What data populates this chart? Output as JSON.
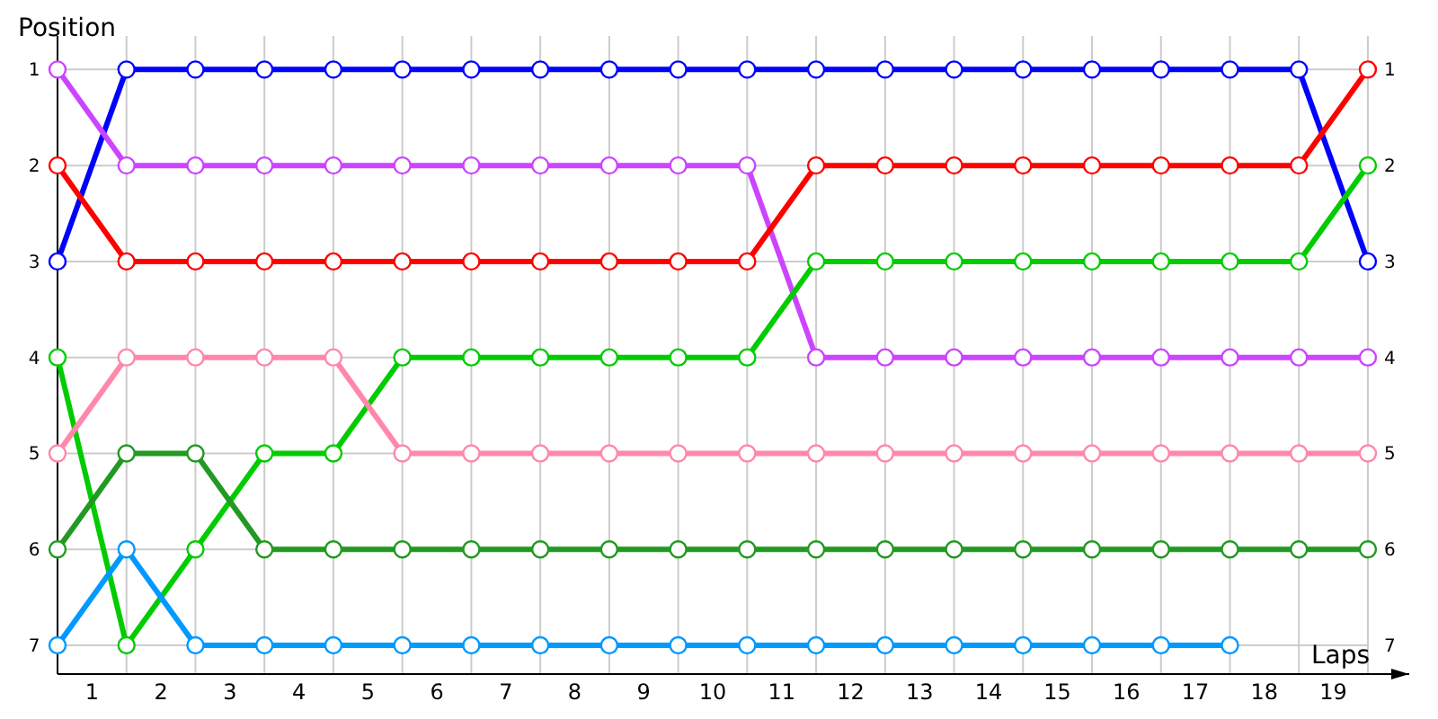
{
  "chart_data": {
    "type": "line",
    "xlabel": "Laps",
    "ylabel": "Position",
    "x": [
      0,
      1,
      2,
      3,
      4,
      5,
      6,
      7,
      8,
      9,
      10,
      11,
      12,
      13,
      14,
      15,
      16,
      17,
      18,
      19
    ],
    "xlim": [
      0,
      19.6
    ],
    "xticks": [
      {
        "value": 0.5,
        "label": "1"
      },
      {
        "value": 1.5,
        "label": "2"
      },
      {
        "value": 2.5,
        "label": "3"
      },
      {
        "value": 3.5,
        "label": "4"
      },
      {
        "value": 4.5,
        "label": "5"
      },
      {
        "value": 5.5,
        "label": "6"
      },
      {
        "value": 6.5,
        "label": "7"
      },
      {
        "value": 7.5,
        "label": "8"
      },
      {
        "value": 8.5,
        "label": "9"
      },
      {
        "value": 9.5,
        "label": "10"
      },
      {
        "value": 10.5,
        "label": "11"
      },
      {
        "value": 11.5,
        "label": "12"
      },
      {
        "value": 12.5,
        "label": "13"
      },
      {
        "value": 13.5,
        "label": "14"
      },
      {
        "value": 14.5,
        "label": "15"
      },
      {
        "value": 15.5,
        "label": "16"
      },
      {
        "value": 16.5,
        "label": "17"
      },
      {
        "value": 17.5,
        "label": "18"
      },
      {
        "value": 18.5,
        "label": "19"
      }
    ],
    "ylim": [
      7.3,
      0.65
    ],
    "yticks": [
      1,
      2,
      3,
      4,
      5,
      6,
      7
    ],
    "y2lim": [
      7.3,
      0.65
    ],
    "y2ticks": [
      1,
      2,
      3,
      4,
      5,
      6,
      7
    ],
    "grid": true,
    "marker": "circle",
    "line_style": "solid",
    "series": [
      {
        "color": "#0000ff",
        "values": [
          3,
          1,
          1,
          1,
          1,
          1,
          1,
          1,
          1,
          1,
          1,
          1,
          1,
          1,
          1,
          1,
          1,
          1,
          1,
          3
        ]
      },
      {
        "color": "#cc44ff",
        "values": [
          1,
          2,
          2,
          2,
          2,
          2,
          2,
          2,
          2,
          2,
          2,
          4,
          4,
          4,
          4,
          4,
          4,
          4,
          4,
          4
        ]
      },
      {
        "color": "#ff0000",
        "values": [
          2,
          3,
          3,
          3,
          3,
          3,
          3,
          3,
          3,
          3,
          3,
          2,
          2,
          2,
          2,
          2,
          2,
          2,
          2,
          1
        ]
      },
      {
        "color": "#00cc00",
        "values": [
          4,
          7,
          6,
          5,
          5,
          4,
          4,
          4,
          4,
          4,
          4,
          3,
          3,
          3,
          3,
          3,
          3,
          3,
          3,
          2
        ]
      },
      {
        "color": "#ff88aa",
        "values": [
          5,
          4,
          4,
          4,
          4,
          5,
          5,
          5,
          5,
          5,
          5,
          5,
          5,
          5,
          5,
          5,
          5,
          5,
          5,
          5
        ]
      },
      {
        "color": "#229922",
        "values": [
          6,
          5,
          5,
          6,
          6,
          6,
          6,
          6,
          6,
          6,
          6,
          6,
          6,
          6,
          6,
          6,
          6,
          6,
          6,
          6
        ]
      },
      {
        "color": "#0099ff",
        "values": [
          7,
          6,
          7,
          7,
          7,
          7,
          7,
          7,
          7,
          7,
          7,
          7,
          7,
          7,
          7,
          7,
          7,
          7,
          null,
          null
        ]
      }
    ]
  }
}
